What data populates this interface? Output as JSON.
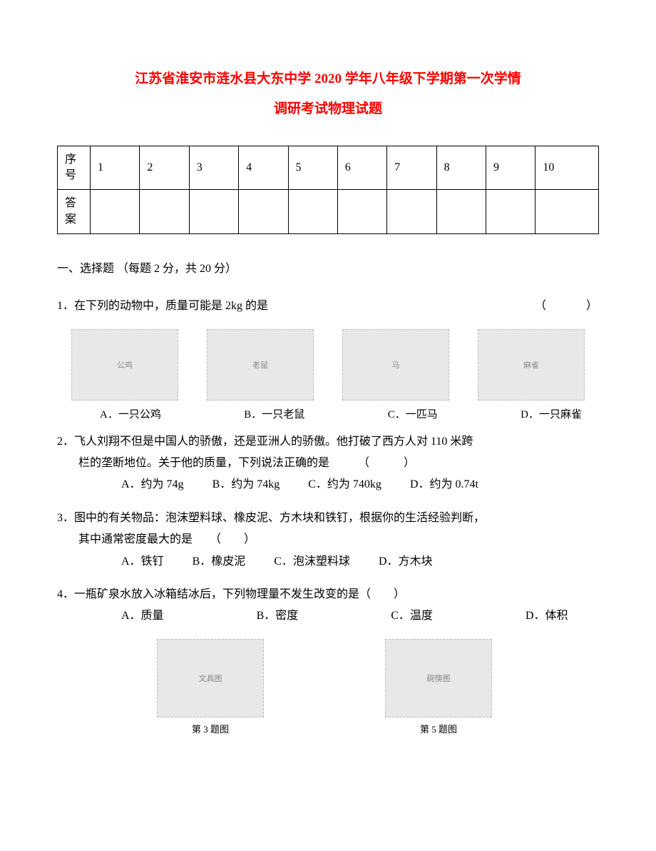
{
  "title_line1": "江苏省淮安市涟水县大东中学 2020 学年八年级下学期第一次学情",
  "title_line2": "调研考试物理试题",
  "table": {
    "row1_label": "序号",
    "row2_label": "答案",
    "cols": [
      "1",
      "2",
      "3",
      "4",
      "5",
      "6",
      "7",
      "8",
      "9",
      "10"
    ]
  },
  "section1": "一、选择题 （每题 2 分，共 20 分）",
  "q1": {
    "num": "1．",
    "text": "在下列的动物中，质量可能是 2kg 的是",
    "paren": "（　　　）",
    "opts": [
      "A．一只公鸡",
      "B．一只老鼠",
      "C．一匹马",
      "D．一只麻雀"
    ],
    "imgs": [
      "公鸡",
      "老鼠",
      "马",
      "麻雀"
    ]
  },
  "q2": {
    "num": "2．",
    "text1": "飞人刘翔不但是中国人的骄傲，还是亚洲人的骄傲。他打破了西方人对 110 米跨",
    "text2": "栏的垄断地位。关于他的质量，下列说法正确的是　　　（　　　）",
    "opts": [
      "A．约为 74g",
      "B．约为 74kg",
      "C．约为 740kg",
      "D．约为 0.74t"
    ]
  },
  "q3": {
    "num": "3．",
    "text1": "图中的有关物品：泡沫塑料球、橡皮泥、方木块和铁钉，根据你的生活经验判断，",
    "text2": "其中通常密度最大的是　　（　　）",
    "opts": [
      "A．铁钉",
      "B．橡皮泥",
      "C．泡沫塑料球",
      "D．方木块"
    ]
  },
  "q4": {
    "num": "4．",
    "text": "一瓶矿泉水放入冰箱结冰后，下列物理量不发生改变的是（　　）",
    "opts": [
      "A．质量",
      "B．密度",
      "C．温度",
      "D．体积"
    ]
  },
  "bottom": {
    "img1_alt": "文具图",
    "img1_cap": "第 3 题图",
    "img2_alt": "碗筷图",
    "img2_cap": "第 5 题图"
  }
}
